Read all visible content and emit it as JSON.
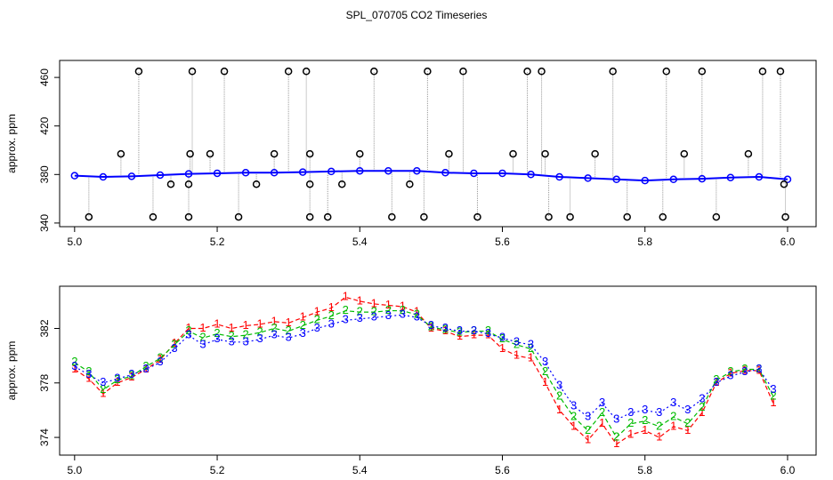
{
  "title": "SPL_070705  CO2 Timeseries",
  "chart_data": [
    {
      "type": "scatter",
      "ylabel": "approx. ppm",
      "xlim": [
        4.979,
        6.04
      ],
      "ylim": [
        337,
        474
      ],
      "xticks": [
        {
          "value": 5,
          "label": "5.0"
        },
        {
          "value": 5.2,
          "label": "5.2"
        },
        {
          "value": 5.4,
          "label": "5.4"
        },
        {
          "value": 5.6,
          "label": "5.6"
        },
        {
          "value": 5.8,
          "label": "5.8"
        },
        {
          "value": 6,
          "label": "6.0"
        }
      ],
      "yticks": [
        340,
        380,
        420,
        460
      ],
      "series": [
        {
          "color": "#0000ff",
          "x": [
            5.0,
            5.04,
            5.08,
            5.12,
            5.16,
            5.2,
            5.24,
            5.28,
            5.32,
            5.36,
            5.4,
            5.44,
            5.48,
            5.52,
            5.56,
            5.6,
            5.64,
            5.68,
            5.72,
            5.76,
            5.8,
            5.84,
            5.88,
            5.92,
            5.96,
            6.0
          ],
          "values": [
            379,
            378,
            378.5,
            379.5,
            380.5,
            381,
            381.5,
            381.5,
            382,
            382.5,
            383,
            383,
            383,
            381.5,
            381,
            381,
            380,
            378,
            377,
            376,
            375,
            376,
            376.5,
            377.5,
            378,
            376
          ]
        },
        {
          "color": "#000000",
          "x": [
            5.02,
            5.065,
            5.09,
            5.11,
            5.135,
            5.16,
            5.16,
            5.162,
            5.165,
            5.19,
            5.21,
            5.23,
            5.255,
            5.28,
            5.3,
            5.325,
            5.33,
            5.33,
            5.33,
            5.355,
            5.375,
            5.4,
            5.42,
            5.445,
            5.47,
            5.49,
            5.495,
            5.525,
            5.545,
            5.565,
            5.615,
            5.635,
            5.655,
            5.66,
            5.665,
            5.695,
            5.73,
            5.755,
            5.775,
            5.825,
            5.83,
            5.855,
            5.88,
            5.9,
            5.945,
            5.965,
            5.99,
            5.995,
            5.997
          ],
          "values": [
            345,
            397,
            465,
            345,
            372,
            345,
            372,
            397,
            465,
            397,
            465,
            345,
            372,
            397,
            465,
            465,
            397,
            372,
            345,
            345,
            372,
            397,
            465,
            345,
            372,
            345,
            465,
            397,
            465,
            345,
            397,
            465,
            465,
            397,
            345,
            345,
            397,
            465,
            345,
            345,
            465,
            397,
            465,
            345,
            397,
            465,
            465,
            372,
            345
          ]
        }
      ]
    },
    {
      "type": "line",
      "ylabel": "approx. ppm",
      "xlim": [
        4.979,
        6.04
      ],
      "ylim": [
        372.7,
        385.1
      ],
      "xticks": [
        {
          "value": 5,
          "label": "5.0"
        },
        {
          "value": 5.2,
          "label": "5.2"
        },
        {
          "value": 5.4,
          "label": "5.4"
        },
        {
          "value": 5.6,
          "label": "5.6"
        },
        {
          "value": 5.8,
          "label": "5.8"
        },
        {
          "value": 6,
          "label": "6.0"
        }
      ],
      "yticks": [
        374,
        378,
        382
      ],
      "x": [
        5.0,
        5.02,
        5.04,
        5.06,
        5.08,
        5.1,
        5.12,
        5.14,
        5.16,
        5.18,
        5.2,
        5.22,
        5.24,
        5.26,
        5.28,
        5.3,
        5.32,
        5.34,
        5.36,
        5.38,
        5.4,
        5.42,
        5.44,
        5.46,
        5.48,
        5.5,
        5.52,
        5.54,
        5.56,
        5.58,
        5.6,
        5.62,
        5.64,
        5.66,
        5.68,
        5.7,
        5.72,
        5.74,
        5.76,
        5.78,
        5.8,
        5.82,
        5.84,
        5.86,
        5.88,
        5.9,
        5.92,
        5.94,
        5.96,
        5.98
      ],
      "series": [
        {
          "marker": "1",
          "color": "#ff0000",
          "values": [
            379.0,
            378.3,
            377.2,
            378.0,
            378.4,
            379.0,
            379.7,
            380.9,
            382.0,
            382.0,
            382.3,
            382.0,
            382.2,
            382.3,
            382.5,
            382.4,
            382.8,
            383.2,
            383.5,
            384.3,
            384.0,
            383.8,
            383.7,
            383.6,
            383.2,
            382.0,
            381.8,
            381.4,
            381.5,
            381.5,
            380.5,
            380.0,
            379.8,
            378.0,
            376.0,
            374.8,
            373.8,
            375.0,
            373.5,
            374.2,
            374.5,
            374.0,
            374.8,
            374.5,
            375.8,
            378.0,
            378.7,
            378.9,
            378.9,
            376.5
          ]
        },
        {
          "marker": "2",
          "color": "#00bb00",
          "values": [
            379.5,
            378.8,
            377.5,
            378.2,
            378.5,
            379.2,
            379.8,
            380.8,
            381.8,
            381.3,
            381.6,
            381.4,
            381.5,
            381.7,
            382.0,
            381.8,
            382.2,
            382.6,
            382.9,
            383.3,
            383.2,
            383.2,
            383.3,
            383.3,
            383.0,
            382.1,
            381.9,
            381.7,
            381.8,
            381.8,
            381.2,
            380.8,
            380.5,
            378.8,
            377.0,
            375.5,
            374.5,
            375.8,
            374.0,
            375.0,
            375.2,
            374.8,
            375.5,
            375.0,
            376.2,
            378.2,
            378.8,
            379.0,
            379.0,
            377.0
          ]
        },
        {
          "marker": "3",
          "color": "#0000ff",
          "values": [
            379.2,
            378.6,
            378.0,
            378.3,
            378.6,
            379.0,
            379.5,
            380.5,
            381.5,
            380.8,
            381.2,
            381.0,
            381.0,
            381.2,
            381.5,
            381.3,
            381.6,
            382.0,
            382.3,
            382.6,
            382.7,
            382.8,
            382.9,
            383.0,
            382.8,
            382.2,
            382.0,
            381.8,
            381.8,
            381.6,
            381.3,
            381.0,
            380.8,
            379.5,
            377.8,
            376.3,
            375.5,
            376.5,
            375.3,
            375.8,
            376.0,
            375.8,
            376.5,
            376.0,
            376.8,
            378.0,
            378.5,
            378.8,
            379.0,
            377.5
          ]
        }
      ]
    }
  ]
}
